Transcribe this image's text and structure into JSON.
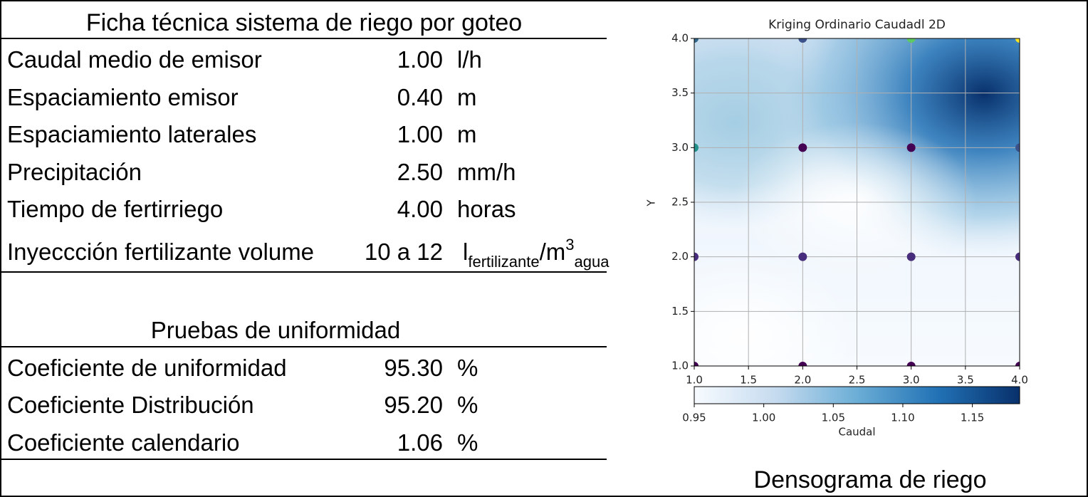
{
  "sheet": {
    "title": "Ficha técnica sistema de riego por goteo",
    "rows": [
      {
        "label": "Caudal medio de emisor",
        "value": "1.00",
        "unit": "l/h"
      },
      {
        "label": "Espaciamiento emisor",
        "value": "0.40",
        "unit": "m"
      },
      {
        "label": "Espaciamiento laterales",
        "value": "1.00",
        "unit": "m"
      },
      {
        "label": "Precipitación",
        "value": "2.50",
        "unit": "mm/h"
      },
      {
        "label": "Tiempo de fertirriego",
        "value": "4.00",
        "unit": "horas"
      },
      {
        "label": "Inyeccción  fertilizante volume",
        "value": "10 a 12",
        "unit": {
          "base": "l",
          "sub": "fertilizante",
          "mid": "/m",
          "sup": "3",
          "sub2": "agua"
        }
      }
    ],
    "uniformity_title": "Pruebas de uniformidad",
    "uniformity_rows": [
      {
        "label": "Coeficiente de uniformidad",
        "value": "95.30",
        "unit": "%"
      },
      {
        "label": "Coeficiente Distribución",
        "value": "95.20",
        "unit": "%"
      },
      {
        "label": "Coeficiente calendario",
        "value": "1.06",
        "unit": "%"
      }
    ],
    "plot_caption": "Densograma de riego"
  },
  "plot": {
    "title": "Kriging Ordinario Caudadl 2D",
    "ylabel": "Y",
    "xlim": [
      1,
      4
    ],
    "ylim": [
      1,
      4
    ],
    "xticks": [
      {
        "value": 1,
        "label": "1.0"
      },
      1.5,
      {
        "value": 2,
        "label": "2.0"
      },
      2.5,
      {
        "value": 3,
        "label": "3.0"
      },
      3.5,
      {
        "value": 4,
        "label": "4.0"
      }
    ],
    "yticks": [
      {
        "value": 1,
        "label": "1.0"
      },
      1.5,
      {
        "value": 2,
        "label": "2.0"
      },
      2.5,
      {
        "value": 3,
        "label": "3.0"
      },
      3.5,
      {
        "value": 4,
        "label": "4.0"
      }
    ],
    "grid": true,
    "sample_points": {
      "x": [
        1,
        2,
        3,
        4,
        1,
        2,
        3,
        4,
        1,
        2,
        3,
        4,
        1,
        2,
        3,
        4
      ],
      "y": [
        1,
        1,
        1,
        1,
        2,
        2,
        2,
        2,
        3,
        3,
        3,
        3,
        4,
        4,
        4,
        4
      ],
      "colors": [
        "#440154",
        "#440154",
        "#440154",
        "#440154",
        "#472d7b",
        "#472d7b",
        "#472d7b",
        "#472d7b",
        "#21918c",
        "#440154",
        "#440154",
        "#3b528b",
        "#31688e",
        "#3b528b",
        "#5ec962",
        "#fde725"
      ]
    },
    "colorbar": {
      "label": "Caudal",
      "lim": [
        0.95,
        1.184
      ],
      "ticks": [
        0.95,
        {
          "value": 1,
          "label": "1.00"
        },
        1.05,
        {
          "value": 1.1,
          "label": "1.10"
        },
        1.15
      ]
    }
  }
}
